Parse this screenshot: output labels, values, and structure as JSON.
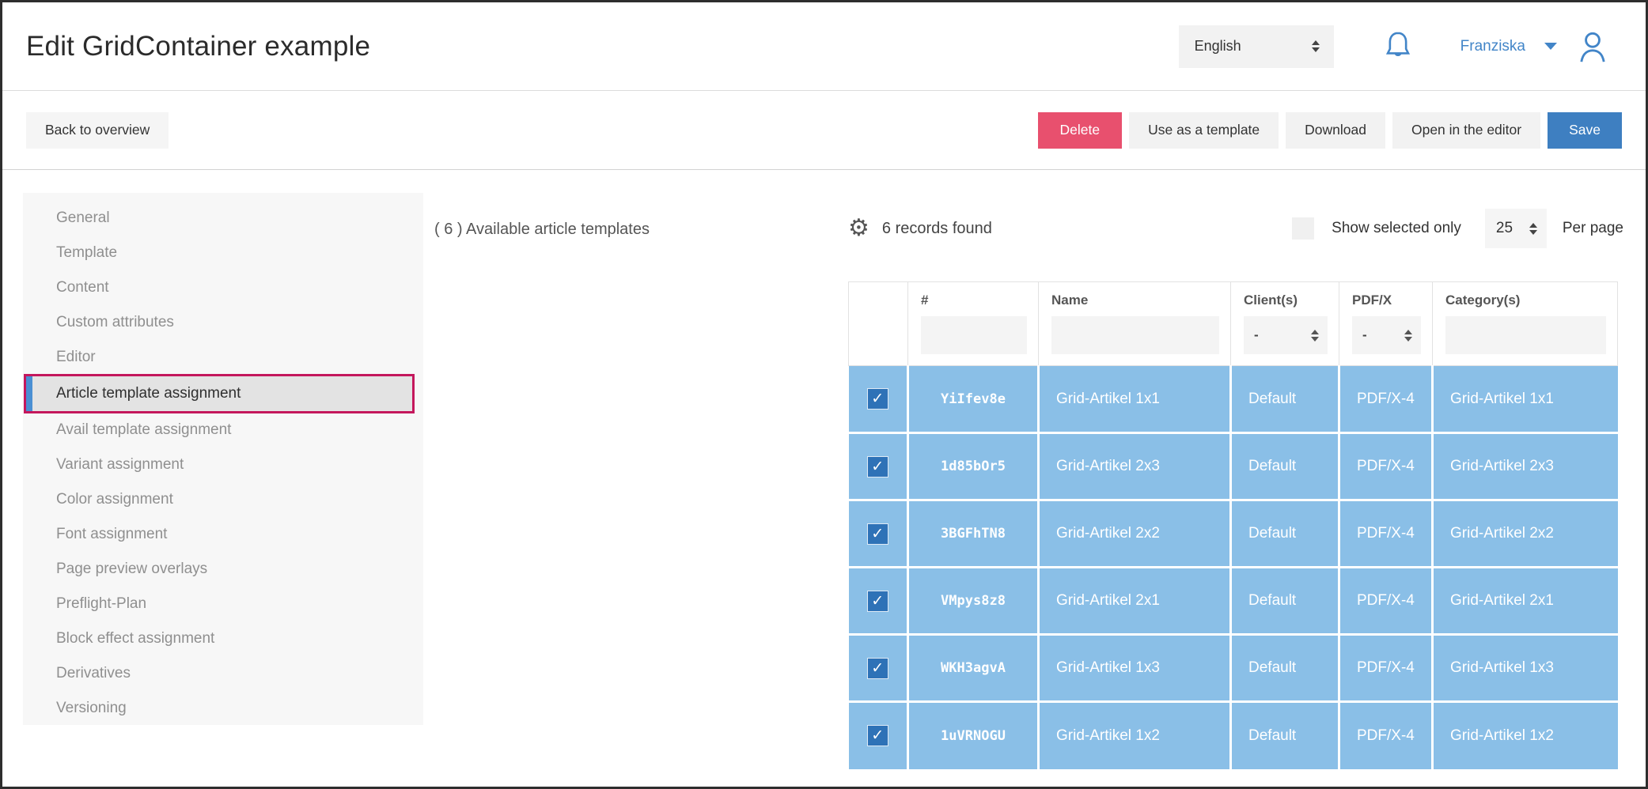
{
  "header": {
    "title": "Edit GridContainer example",
    "language_selected": "English",
    "user_name": "Franziska"
  },
  "toolbar": {
    "back_label": "Back to overview",
    "delete_label": "Delete",
    "use_template_label": "Use as a template",
    "download_label": "Download",
    "open_editor_label": "Open in the editor",
    "save_label": "Save"
  },
  "sidebar": {
    "items": [
      {
        "label": "General",
        "active": false
      },
      {
        "label": "Template",
        "active": false
      },
      {
        "label": "Content",
        "active": false
      },
      {
        "label": "Custom attributes",
        "active": false
      },
      {
        "label": "Editor",
        "active": false
      },
      {
        "label": "Article template assignment",
        "active": true
      },
      {
        "label": "Avail template assignment",
        "active": false
      },
      {
        "label": "Variant assignment",
        "active": false
      },
      {
        "label": "Color assignment",
        "active": false
      },
      {
        "label": "Font assignment",
        "active": false
      },
      {
        "label": "Page preview overlays",
        "active": false
      },
      {
        "label": "Preflight-Plan",
        "active": false
      },
      {
        "label": "Block effect assignment",
        "active": false
      },
      {
        "label": "Derivatives",
        "active": false
      },
      {
        "label": "Versioning",
        "active": false
      }
    ]
  },
  "main": {
    "panel_title": "( 6 ) Available article templates",
    "records_found": "6 records found",
    "show_selected_label": "Show selected only",
    "show_selected_checked": false,
    "per_page_value": "25",
    "per_page_label": "Per page",
    "table": {
      "columns": {
        "id": "#",
        "name": "Name",
        "client": "Client(s)",
        "pdfx": "PDF/X",
        "category": "Category(s)"
      },
      "filters": {
        "client_selected": "-",
        "pdfx_selected": "-"
      },
      "rows": [
        {
          "selected": true,
          "id": "YiIfev8e",
          "name": "Grid-Artikel 1x1",
          "client": "Default",
          "pdfx": "PDF/X-4",
          "category": "Grid-Artikel 1x1"
        },
        {
          "selected": true,
          "id": "1d85bOr5",
          "name": "Grid-Artikel 2x3",
          "client": "Default",
          "pdfx": "PDF/X-4",
          "category": "Grid-Artikel 2x3"
        },
        {
          "selected": true,
          "id": "3BGFhTN8",
          "name": "Grid-Artikel 2x2",
          "client": "Default",
          "pdfx": "PDF/X-4",
          "category": "Grid-Artikel 2x2"
        },
        {
          "selected": true,
          "id": "VMpys8z8",
          "name": "Grid-Artikel 2x1",
          "client": "Default",
          "pdfx": "PDF/X-4",
          "category": "Grid-Artikel 2x1"
        },
        {
          "selected": true,
          "id": "WKH3agvA",
          "name": "Grid-Artikel 1x3",
          "client": "Default",
          "pdfx": "PDF/X-4",
          "category": "Grid-Artikel 1x3"
        },
        {
          "selected": true,
          "id": "1uVRNOGU",
          "name": "Grid-Artikel 1x2",
          "client": "Default",
          "pdfx": "PDF/X-4",
          "category": "Grid-Artikel 1x2"
        }
      ]
    }
  },
  "colors": {
    "accent_blue": "#3e7fc1",
    "link_blue": "#4285c8",
    "row_blue": "#8abfe7",
    "checkbox_blue": "#2e72b7",
    "delete_pink": "#e8506e",
    "highlight_outline": "#c4175c",
    "active_item_bar": "#4a8fd3"
  }
}
